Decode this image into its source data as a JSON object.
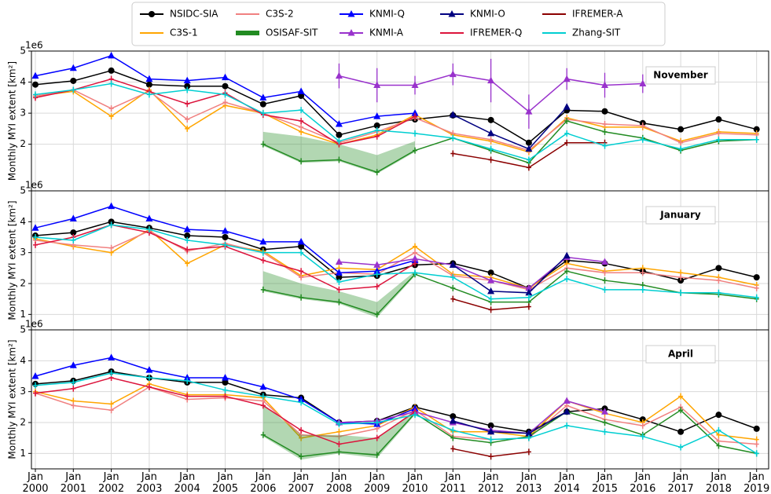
{
  "chart_data": [
    {
      "type": "line",
      "annotation": "November",
      "ylabel": "Monthly MYI extent [km²]",
      "offset_label": "1e6",
      "ylim": [
        0.5,
        5
      ],
      "yticks": [
        2,
        3,
        4,
        5
      ],
      "grid": true,
      "series": [
        {
          "name": "NSIDC-SIA",
          "color": "#000000",
          "marker": "circle",
          "values": [
            3.92,
            4.04,
            4.37,
            3.92,
            3.87,
            3.87,
            3.29,
            3.56,
            2.3,
            2.6,
            2.8,
            2.93,
            2.78,
            2.05,
            3.09,
            3.06,
            2.68,
            2.48,
            2.8,
            2.48
          ]
        },
        {
          "name": "C3S-1",
          "color": "#ffa500",
          "marker": "plus",
          "values": [
            3.55,
            3.7,
            2.9,
            3.75,
            2.5,
            3.25,
            3.0,
            2.4,
            2.0,
            2.3,
            2.95,
            2.3,
            2.1,
            1.75,
            2.85,
            2.55,
            2.55,
            2.1,
            2.4,
            2.35
          ]
        },
        {
          "name": "C3S-2",
          "color": "#f08080",
          "marker": "plus",
          "values": [
            3.55,
            3.75,
            3.15,
            3.7,
            2.8,
            3.35,
            3.0,
            2.55,
            2.05,
            2.4,
            2.85,
            2.35,
            2.15,
            1.8,
            2.8,
            2.65,
            2.6,
            2.05,
            2.35,
            2.3
          ]
        },
        {
          "name": "OSISAF-SIT",
          "color": "#228b22",
          "marker": "plus",
          "values": [
            null,
            null,
            null,
            null,
            null,
            null,
            2.0,
            1.45,
            1.5,
            1.1,
            1.8,
            2.2,
            1.8,
            1.4,
            2.75,
            2.4,
            2.2,
            1.8,
            2.1,
            2.15
          ],
          "band_lower": [
            null,
            null,
            null,
            null,
            null,
            null,
            1.95,
            1.4,
            1.45,
            1.05,
            1.75,
            null,
            null,
            null,
            null,
            null,
            null,
            null,
            null,
            null
          ],
          "band_upper": [
            null,
            null,
            null,
            null,
            null,
            null,
            2.4,
            2.25,
            2.0,
            1.65,
            2.1,
            null,
            null,
            null,
            null,
            null,
            null,
            null,
            null,
            null
          ]
        },
        {
          "name": "KNMI-Q",
          "color": "#0000ff",
          "marker": "triangle",
          "values": [
            4.2,
            4.45,
            4.85,
            4.1,
            4.05,
            4.15,
            3.5,
            3.7,
            2.65,
            2.9,
            3.0,
            null,
            null,
            null,
            null,
            null,
            null,
            null,
            null,
            null
          ]
        },
        {
          "name": "KNMI-A",
          "color": "#9932cc",
          "marker": "triangle",
          "values": [
            null,
            null,
            null,
            null,
            null,
            null,
            null,
            null,
            4.2,
            3.9,
            3.9,
            4.25,
            4.05,
            3.05,
            4.1,
            3.9,
            3.95,
            null,
            null,
            null
          ],
          "errors": [
            null,
            null,
            null,
            null,
            null,
            null,
            null,
            null,
            0.4,
            0.55,
            0.3,
            0.35,
            0.7,
            0.55,
            0.35,
            0.4,
            0.3,
            null,
            null,
            null
          ]
        },
        {
          "name": "KNMI-O",
          "color": "#000080",
          "marker": "triangle",
          "values": [
            null,
            null,
            null,
            null,
            null,
            null,
            null,
            null,
            null,
            null,
            null,
            2.95,
            2.35,
            1.85,
            3.2,
            null,
            null,
            null,
            null,
            null
          ]
        },
        {
          "name": "IFREMER-Q",
          "color": "#dc143c",
          "marker": "plus",
          "values": [
            3.5,
            3.75,
            4.1,
            3.7,
            3.3,
            3.65,
            2.95,
            2.75,
            2.0,
            2.25,
            2.9,
            null,
            null,
            null,
            null,
            null,
            null,
            null,
            null,
            null
          ]
        },
        {
          "name": "IFREMER-A",
          "color": "#8b0000",
          "marker": "plus",
          "values": [
            null,
            null,
            null,
            null,
            null,
            null,
            null,
            null,
            null,
            null,
            null,
            1.7,
            1.5,
            1.25,
            2.05,
            2.05,
            null,
            null,
            null,
            null
          ]
        },
        {
          "name": "Zhang-SIT",
          "color": "#00ced1",
          "marker": "plus",
          "values": [
            3.6,
            3.75,
            3.95,
            3.6,
            3.75,
            3.6,
            3.0,
            3.1,
            2.1,
            2.45,
            2.35,
            2.2,
            1.85,
            1.5,
            2.35,
            1.95,
            2.15,
            1.85,
            2.15,
            2.15
          ]
        }
      ]
    },
    {
      "type": "line",
      "annotation": "January",
      "ylabel": "Monthly MYI extent [km²]",
      "offset_label": "1e6",
      "ylim": [
        0.5,
        5
      ],
      "yticks": [
        1,
        2,
        3,
        4,
        5
      ],
      "grid": true,
      "series": [
        {
          "values": [
            3.55,
            3.65,
            4.0,
            3.8,
            3.55,
            3.5,
            3.1,
            3.2,
            2.2,
            2.25,
            2.6,
            2.65,
            2.35,
            1.85,
            2.75,
            2.65,
            2.4,
            2.1,
            2.5,
            2.2
          ]
        },
        {
          "values": [
            3.45,
            3.2,
            3.0,
            3.75,
            2.65,
            3.25,
            3.05,
            2.25,
            2.5,
            2.45,
            3.2,
            2.3,
            2.2,
            1.85,
            2.65,
            2.4,
            2.5,
            2.35,
            2.2,
            1.95
          ]
        },
        {
          "values": [
            3.4,
            3.25,
            3.15,
            3.7,
            3.05,
            3.3,
            3.0,
            2.2,
            2.35,
            2.3,
            3.0,
            2.25,
            2.1,
            1.8,
            2.5,
            2.35,
            2.35,
            2.2,
            2.1,
            1.85
          ]
        },
        {
          "values": [
            null,
            null,
            null,
            null,
            null,
            null,
            1.8,
            1.55,
            1.4,
            1.0,
            2.3,
            1.85,
            1.4,
            1.4,
            2.4,
            2.1,
            1.95,
            1.7,
            1.65,
            1.5
          ],
          "band_lower": [
            null,
            null,
            null,
            null,
            null,
            null,
            1.75,
            1.5,
            1.35,
            0.9,
            2.25,
            null,
            null,
            null,
            null,
            null,
            null,
            null,
            null,
            null
          ],
          "band_upper": [
            null,
            null,
            null,
            null,
            null,
            null,
            2.4,
            2.0,
            1.75,
            1.4,
            2.4,
            null,
            null,
            null,
            null,
            null,
            null,
            null,
            null,
            null
          ]
        },
        {
          "values": [
            3.8,
            4.1,
            4.5,
            4.1,
            3.75,
            3.7,
            3.35,
            3.35,
            2.35,
            2.4,
            2.75,
            null,
            null,
            null,
            null,
            null,
            null,
            null,
            null,
            null
          ]
        },
        {
          "values": [
            null,
            null,
            null,
            null,
            null,
            null,
            null,
            null,
            2.7,
            2.6,
            2.8,
            2.6,
            2.1,
            1.85,
            2.85,
            2.7,
            null,
            null,
            null,
            null
          ]
        },
        {
          "values": [
            null,
            null,
            null,
            null,
            null,
            null,
            null,
            null,
            null,
            null,
            null,
            2.6,
            1.75,
            1.7,
            2.9,
            null,
            null,
            null,
            null,
            null
          ]
        },
        {
          "values": [
            3.25,
            3.5,
            3.9,
            3.65,
            3.1,
            3.2,
            2.75,
            2.4,
            1.8,
            1.9,
            2.65,
            null,
            null,
            null,
            null,
            null,
            null,
            null,
            null,
            null
          ]
        },
        {
          "values": [
            null,
            null,
            null,
            null,
            null,
            null,
            null,
            null,
            null,
            null,
            null,
            1.5,
            1.15,
            1.25,
            null,
            null,
            null,
            null,
            null,
            null
          ]
        },
        {
          "values": [
            3.5,
            3.4,
            3.9,
            3.75,
            3.4,
            3.25,
            3.0,
            3.0,
            2.05,
            2.3,
            2.35,
            2.2,
            1.5,
            1.55,
            2.15,
            1.8,
            1.8,
            1.7,
            1.7,
            1.55
          ]
        }
      ]
    },
    {
      "type": "line",
      "annotation": "April",
      "ylabel": "Monthly MYI extent [km²]",
      "offset_label": "1e6",
      "ylim": [
        0.5,
        5
      ],
      "yticks": [
        1,
        2,
        3,
        4,
        5
      ],
      "grid": true,
      "categories": [
        "Jan\n2000",
        "Jan\n2001",
        "Jan\n2002",
        "Jan\n2003",
        "Jan\n2004",
        "Jan\n2005",
        "Jan\n2006",
        "Jan\n2007",
        "Jan\n2008",
        "Jan\n2009",
        "Jan\n2010",
        "Jan\n2011",
        "Jan\n2012",
        "Jan\n2013",
        "Jan\n2014",
        "Jan\n2015",
        "Jan\n2016",
        "Jan\n2017",
        "Jan\n2018",
        "Jan\n2019"
      ],
      "series": [
        {
          "values": [
            3.25,
            3.35,
            3.65,
            3.45,
            3.3,
            3.3,
            2.9,
            2.8,
            2.0,
            2.05,
            2.5,
            2.2,
            1.9,
            1.7,
            2.35,
            2.45,
            2.1,
            1.7,
            2.25,
            1.8
          ]
        },
        {
          "values": [
            3.0,
            2.7,
            2.6,
            3.25,
            2.9,
            2.9,
            2.8,
            1.5,
            1.7,
            1.9,
            2.5,
            1.7,
            1.7,
            1.55,
            2.7,
            2.3,
            2.0,
            2.85,
            1.6,
            1.45
          ]
        },
        {
          "values": [
            2.95,
            2.55,
            2.4,
            3.15,
            2.75,
            2.8,
            2.7,
            1.6,
            1.55,
            1.8,
            2.4,
            1.55,
            1.45,
            1.5,
            2.55,
            2.1,
            1.9,
            2.5,
            1.4,
            1.3
          ]
        },
        {
          "values": [
            null,
            null,
            null,
            null,
            null,
            null,
            1.6,
            0.9,
            1.05,
            0.95,
            2.3,
            1.5,
            1.35,
            1.55,
            2.35,
            2.0,
            1.6,
            2.4,
            1.25,
            1.0
          ],
          "band_lower": [
            null,
            null,
            null,
            null,
            null,
            null,
            1.55,
            0.8,
            1.0,
            0.85,
            2.25,
            null,
            null,
            null,
            null,
            null,
            null,
            null,
            null,
            null
          ],
          "band_upper": [
            null,
            null,
            null,
            null,
            null,
            null,
            2.6,
            1.6,
            1.6,
            1.5,
            2.4,
            null,
            null,
            null,
            null,
            null,
            null,
            null,
            null,
            null
          ]
        },
        {
          "values": [
            3.5,
            3.85,
            4.1,
            3.7,
            3.45,
            3.45,
            3.15,
            2.75,
            2.0,
            1.95,
            2.45,
            null,
            null,
            null,
            null,
            null,
            null,
            null,
            null,
            null
          ]
        },
        {
          "values": [
            null,
            null,
            null,
            null,
            null,
            null,
            null,
            null,
            2.0,
            2.05,
            2.35,
            2.0,
            1.75,
            1.65,
            2.7,
            2.35,
            null,
            null,
            null,
            null
          ]
        },
        {
          "values": [
            null,
            null,
            null,
            null,
            null,
            null,
            null,
            null,
            null,
            null,
            null,
            2.05,
            1.7,
            1.65,
            2.35,
            null,
            null,
            null,
            null,
            null
          ]
        },
        {
          "values": [
            2.95,
            3.1,
            3.45,
            3.15,
            2.85,
            2.85,
            2.55,
            1.75,
            1.3,
            1.5,
            2.35,
            null,
            null,
            null,
            null,
            null,
            null,
            null,
            null,
            null
          ]
        },
        {
          "values": [
            null,
            null,
            null,
            null,
            null,
            null,
            null,
            null,
            null,
            null,
            null,
            1.15,
            0.9,
            1.05,
            null,
            null,
            null,
            null,
            null,
            null
          ]
        },
        {
          "values": [
            3.2,
            3.3,
            3.6,
            3.45,
            3.35,
            3.05,
            2.85,
            2.65,
            1.95,
            2.0,
            2.25,
            1.75,
            1.45,
            1.5,
            1.9,
            1.7,
            1.55,
            1.2,
            1.75,
            1.0
          ]
        }
      ]
    }
  ]
}
